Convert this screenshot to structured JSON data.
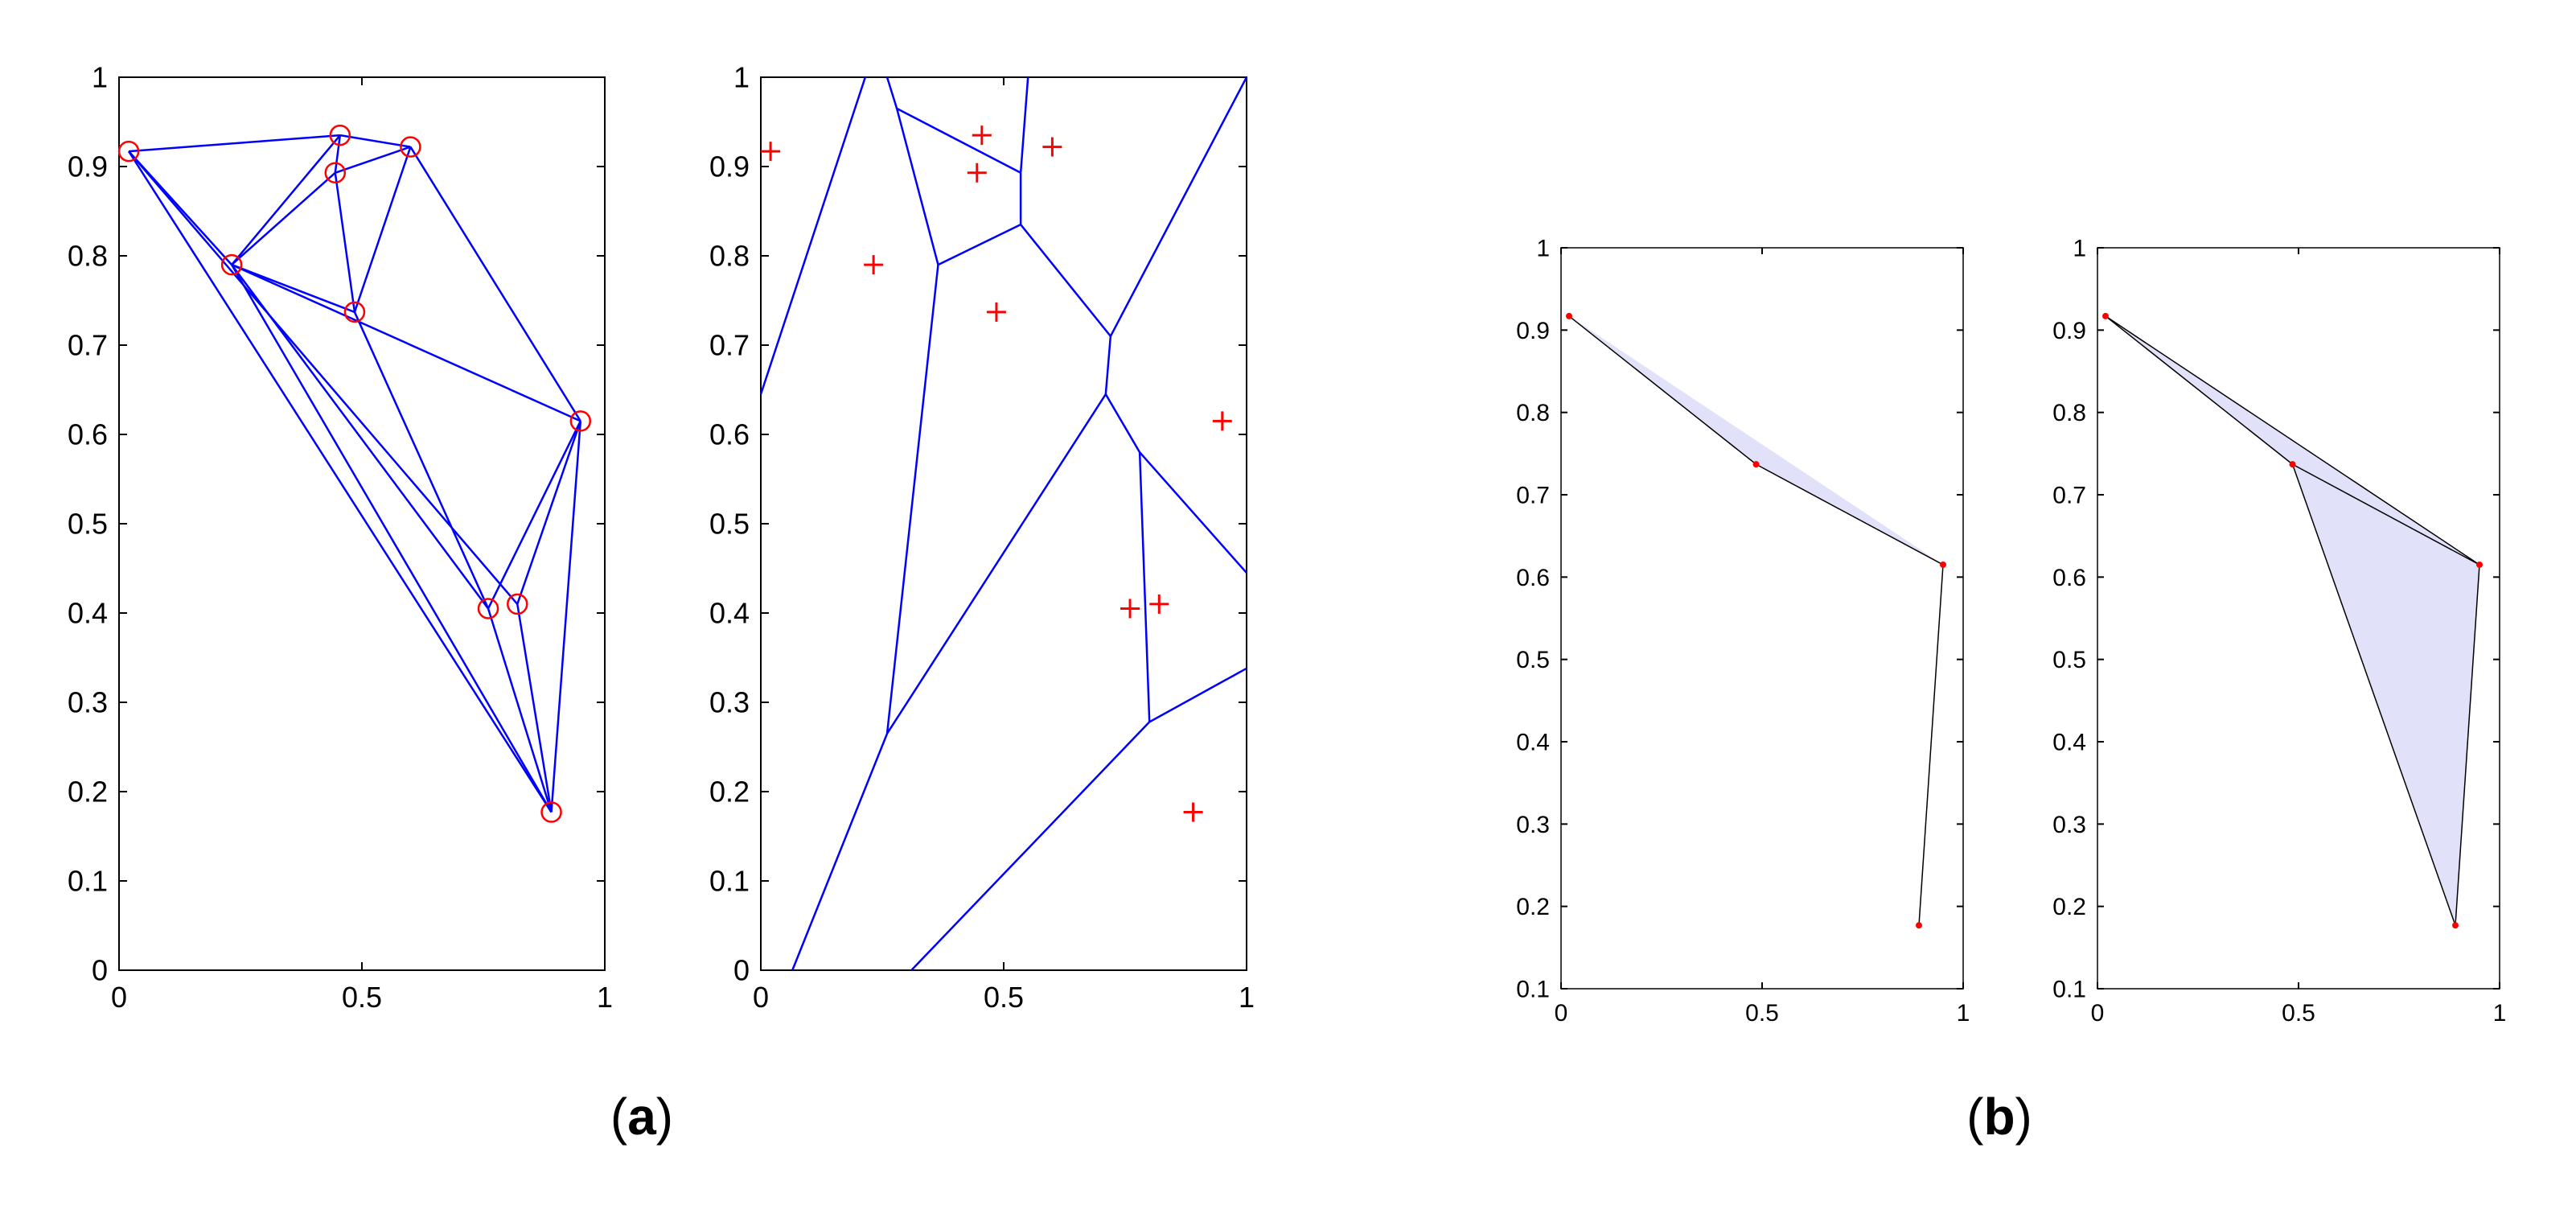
{
  "panel_labels": {
    "a": {
      "open": "(",
      "letter": "a",
      "close": ")"
    },
    "b": {
      "open": "(",
      "letter": "b",
      "close": ")"
    }
  },
  "colors": {
    "edge": "#0000ff",
    "site": "#ff0000",
    "fill": "#e1e1fa",
    "outline": "#000000"
  },
  "chart_data": [
    {
      "id": "a-left",
      "type": "scatter",
      "description_marker": "circle",
      "xlim": [
        0,
        1
      ],
      "ylim": [
        0,
        1
      ],
      "xticks": [
        0,
        0.5,
        1
      ],
      "xtick_labels": [
        "0",
        "0.5",
        "1"
      ],
      "yticks": [
        0,
        0.1,
        0.2,
        0.3,
        0.4,
        0.5,
        0.6,
        0.7,
        0.8,
        0.9,
        1
      ],
      "ytick_labels": [
        "0",
        "0.1",
        "0.2",
        "0.3",
        "0.4",
        "0.5",
        "0.6",
        "0.7",
        "0.8",
        "0.9",
        "1"
      ],
      "points": [
        [
          0.02,
          0.917
        ],
        [
          0.455,
          0.935
        ],
        [
          0.6,
          0.922
        ],
        [
          0.445,
          0.893
        ],
        [
          0.232,
          0.79
        ],
        [
          0.485,
          0.737
        ],
        [
          0.95,
          0.615
        ],
        [
          0.76,
          0.405
        ],
        [
          0.82,
          0.41
        ],
        [
          0.89,
          0.177
        ]
      ],
      "edges": [
        [
          0,
          1
        ],
        [
          1,
          2
        ],
        [
          0,
          4
        ],
        [
          0,
          8
        ],
        [
          0,
          9
        ],
        [
          4,
          1
        ],
        [
          4,
          3
        ],
        [
          3,
          1
        ],
        [
          3,
          2
        ],
        [
          3,
          5
        ],
        [
          5,
          2
        ],
        [
          4,
          5
        ],
        [
          4,
          6
        ],
        [
          4,
          7
        ],
        [
          4,
          9
        ],
        [
          2,
          6
        ],
        [
          5,
          7
        ],
        [
          7,
          6
        ],
        [
          8,
          6
        ],
        [
          6,
          9
        ],
        [
          7,
          9
        ],
        [
          8,
          9
        ]
      ]
    },
    {
      "id": "a-right",
      "type": "scatter",
      "description_marker": "plus",
      "xlim": [
        0,
        1
      ],
      "ylim": [
        0,
        1
      ],
      "xticks": [
        0,
        0.5,
        1
      ],
      "xtick_labels": [
        "0",
        "0.5",
        "1"
      ],
      "yticks": [
        0,
        0.1,
        0.2,
        0.3,
        0.4,
        0.5,
        0.6,
        0.7,
        0.8,
        0.9,
        1
      ],
      "ytick_labels": [
        "0",
        "0.1",
        "0.2",
        "0.3",
        "0.4",
        "0.5",
        "0.6",
        "0.7",
        "0.8",
        "0.9",
        "1"
      ],
      "points": [
        [
          0.02,
          0.917
        ],
        [
          0.455,
          0.935
        ],
        [
          0.6,
          0.922
        ],
        [
          0.445,
          0.893
        ],
        [
          0.232,
          0.79
        ],
        [
          0.485,
          0.737
        ],
        [
          0.95,
          0.615
        ],
        [
          0.76,
          0.405
        ],
        [
          0.82,
          0.41
        ],
        [
          0.89,
          0.177
        ]
      ],
      "segments": [
        [
          [
            0,
            0.645
          ],
          [
            0.215,
            1.0
          ]
        ],
        [
          [
            0.26,
            1.0
          ],
          [
            0.28,
            0.965
          ]
        ],
        [
          [
            0.28,
            0.965
          ],
          [
            0.535,
            0.893
          ]
        ],
        [
          [
            0.535,
            0.893
          ],
          [
            0.535,
            0.835
          ]
        ],
        [
          [
            0.535,
            0.893
          ],
          [
            0.55,
            1.0
          ]
        ],
        [
          [
            0.28,
            0.965
          ],
          [
            0.365,
            0.79
          ]
        ],
        [
          [
            0.365,
            0.79
          ],
          [
            0.535,
            0.835
          ]
        ],
        [
          [
            0.365,
            0.79
          ],
          [
            0.26,
            0.265
          ]
        ],
        [
          [
            0.26,
            0.265
          ],
          [
            0.065,
            0
          ]
        ],
        [
          [
            0.26,
            0.265
          ],
          [
            0.71,
            0.645
          ]
        ],
        [
          [
            0.535,
            0.835
          ],
          [
            0.72,
            0.71
          ]
        ],
        [
          [
            0.72,
            0.71
          ],
          [
            0.71,
            0.645
          ]
        ],
        [
          [
            0.72,
            0.71
          ],
          [
            1.0,
            1.0
          ]
        ],
        [
          [
            0.71,
            0.645
          ],
          [
            0.78,
            0.58
          ]
        ],
        [
          [
            0.78,
            0.58
          ],
          [
            1.0,
            0.445
          ]
        ],
        [
          [
            0.78,
            0.58
          ],
          [
            0.8,
            0.278
          ]
        ],
        [
          [
            0.8,
            0.278
          ],
          [
            1.0,
            0.338
          ]
        ],
        [
          [
            0.8,
            0.278
          ],
          [
            0.31,
            0
          ]
        ]
      ]
    },
    {
      "id": "b-left",
      "type": "area",
      "xlim": [
        0,
        1
      ],
      "ylim": [
        0.1,
        1
      ],
      "xticks": [
        0,
        0.5,
        1
      ],
      "xtick_labels": [
        "0",
        "0.5",
        "1"
      ],
      "yticks": [
        0.1,
        0.2,
        0.3,
        0.4,
        0.5,
        0.6,
        0.7,
        0.8,
        0.9,
        1
      ],
      "ytick_labels": [
        "0.1",
        "0.2",
        "0.3",
        "0.4",
        "0.5",
        "0.6",
        "0.7",
        "0.8",
        "0.9",
        "1"
      ],
      "filled": [
        [
          0.02,
          0.917
        ],
        [
          0.485,
          0.737
        ],
        [
          0.95,
          0.615
        ]
      ],
      "outline": [
        [
          0.02,
          0.917
        ],
        [
          0.485,
          0.737
        ],
        [
          0.95,
          0.615
        ],
        [
          0.89,
          0.177
        ]
      ],
      "points": [
        [
          0.02,
          0.917
        ],
        [
          0.485,
          0.737
        ],
        [
          0.95,
          0.615
        ],
        [
          0.89,
          0.177
        ]
      ]
    },
    {
      "id": "b-right",
      "type": "area",
      "xlim": [
        0,
        1
      ],
      "ylim": [
        0.1,
        1
      ],
      "xticks": [
        0,
        0.5,
        1
      ],
      "xtick_labels": [
        "0",
        "0.5",
        "1"
      ],
      "yticks": [
        0.1,
        0.2,
        0.3,
        0.4,
        0.5,
        0.6,
        0.7,
        0.8,
        0.9,
        1
      ],
      "ytick_labels": [
        "0.1",
        "0.2",
        "0.3",
        "0.4",
        "0.5",
        "0.6",
        "0.7",
        "0.8",
        "0.9",
        "1"
      ],
      "filled": [
        [
          0.02,
          0.917
        ],
        [
          0.485,
          0.737
        ],
        [
          0.95,
          0.615
        ],
        [
          0.485,
          0.737
        ],
        [
          0.89,
          0.177
        ],
        [
          0.95,
          0.615
        ]
      ],
      "outline": [
        [
          0.02,
          0.917
        ],
        [
          0.485,
          0.737
        ],
        [
          0.89,
          0.177
        ],
        [
          0.95,
          0.615
        ],
        [
          0.02,
          0.917
        ]
      ],
      "extra_edges": [
        [
          [
            0.485,
            0.737
          ],
          [
            0.95,
            0.615
          ]
        ]
      ],
      "points": [
        [
          0.02,
          0.917
        ],
        [
          0.485,
          0.737
        ],
        [
          0.95,
          0.615
        ],
        [
          0.89,
          0.177
        ]
      ]
    }
  ]
}
